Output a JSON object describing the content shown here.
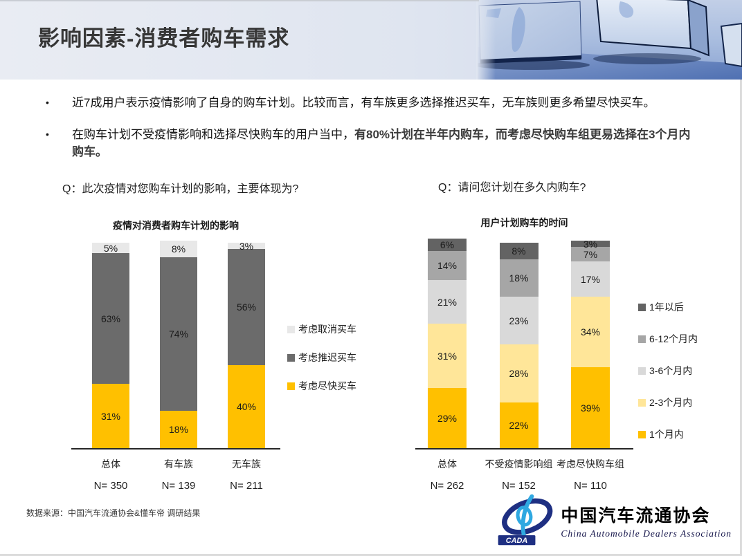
{
  "slide": {
    "title": "影响因素-消费者购车需求",
    "bullet_char": "•",
    "bullets": {
      "b1": "近7成用户表示疫情影响了自身的购车计划。比较而言，有车族更多选择推迟买车，无车族则更多希望尽快买车。",
      "b2_regular": "在购车计划不受疫情影响和选择尽快购车的用户当中，",
      "b2_bold": "有80%计划在半年内购车，而考虑尽快购车组更易选择在3个月内购车。"
    },
    "footer_source": "数据来源：中国汽车流通协会&懂车帝  调研结果"
  },
  "logo": {
    "acronym": "CADA",
    "name_cn": "中国汽车流通协会",
    "name_en": "China Automobile Dealers Association",
    "navy": "#1e2f82",
    "light_blue": "#2fa8e1"
  },
  "chart_data": [
    {
      "type": "bar",
      "stacked": true,
      "question": "Q：此次疫情对您购车计划的影响，主要体现为?",
      "title": "疫情对消费者购车计划的影响",
      "categories": [
        "总体",
        "有车族",
        "无车族"
      ],
      "sample_sizes": [
        "N= 350",
        "N= 139",
        "N= 211"
      ],
      "unit": "%",
      "ylim": [
        0,
        100
      ],
      "grid": false,
      "legend_position": "right",
      "series": [
        {
          "name": "考虑尽快买车",
          "color": "#FFC000",
          "values": [
            31,
            18,
            40
          ]
        },
        {
          "name": "考虑推迟买车",
          "color": "#6B6B6B",
          "values": [
            63,
            74,
            56
          ]
        },
        {
          "name": "考虑取消买车",
          "color": "#E8E8E8",
          "values": [
            5,
            8,
            3
          ]
        }
      ],
      "legend_order": [
        "考虑取消买车",
        "考虑推迟买车",
        "考虑尽快买车"
      ]
    },
    {
      "type": "bar",
      "stacked": true,
      "question": "Q：请问您计划在多久内购车?",
      "title": "用户计划购车的时间",
      "categories": [
        "总体",
        "不受疫情影响组",
        "考虑尽快购车组"
      ],
      "sample_sizes": [
        "N= 262",
        "N= 152",
        "N= 110"
      ],
      "unit": "%",
      "ylim": [
        0,
        100
      ],
      "grid": false,
      "legend_position": "right",
      "series": [
        {
          "name": "1个月内",
          "color": "#FFC000",
          "values": [
            29,
            22,
            39
          ]
        },
        {
          "name": "2-3个月内",
          "color": "#FFE699",
          "values": [
            31,
            28,
            34
          ]
        },
        {
          "name": "3-6个月内",
          "color": "#D9D9D9",
          "values": [
            21,
            23,
            17
          ]
        },
        {
          "name": "6-12个月内",
          "color": "#A6A6A6",
          "values": [
            14,
            18,
            7
          ]
        },
        {
          "name": "1年以后",
          "color": "#636363",
          "values": [
            6,
            8,
            3
          ]
        }
      ],
      "legend_order": [
        "1年以后",
        "6-12个月内",
        "3-6个月内",
        "2-3个月内",
        "1个月内"
      ]
    }
  ]
}
